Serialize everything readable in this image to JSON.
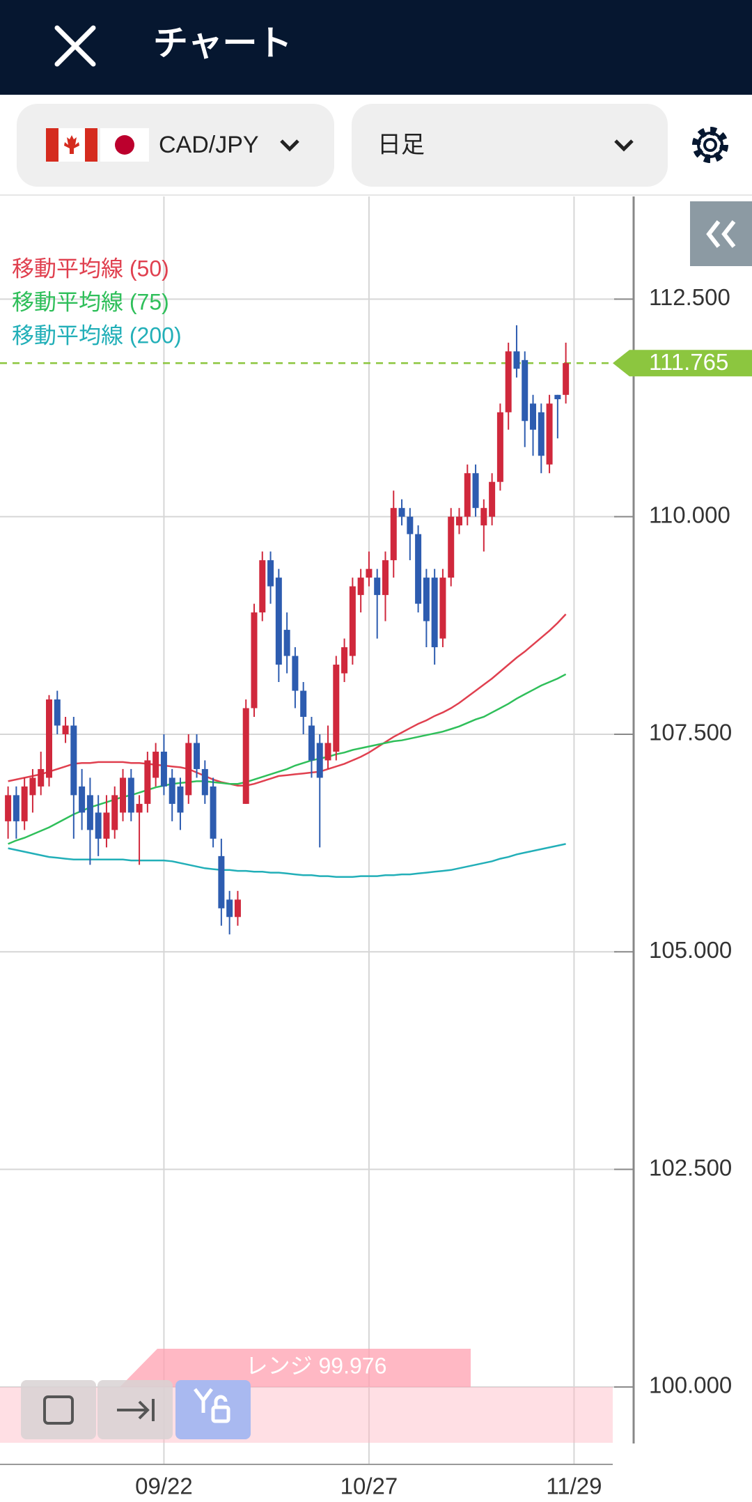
{
  "header": {
    "title": "チャート",
    "pair": "CAD/JPY",
    "timeframe": "日足"
  },
  "chart_data": {
    "type": "candlestick",
    "categories": [
      null,
      null,
      null,
      null,
      null,
      null,
      null,
      null,
      null,
      null,
      null,
      null,
      null,
      null,
      null,
      null,
      null,
      null,
      null,
      "09/22",
      null,
      null,
      null,
      null,
      null,
      null,
      null,
      null,
      null,
      null,
      null,
      null,
      null,
      null,
      null,
      null,
      null,
      null,
      null,
      null,
      null,
      null,
      null,
      null,
      "10/27",
      null,
      null,
      null,
      null,
      null,
      null,
      null,
      null,
      null,
      null,
      null,
      null,
      null,
      null,
      null,
      null,
      null,
      null,
      null,
      null,
      null,
      null,
      null,
      null,
      "11/29"
    ],
    "open": [
      106.5,
      106.8,
      106.5,
      106.8,
      106.9,
      107.0,
      107.9,
      107.5,
      107.6,
      106.9,
      106.8,
      106.6,
      106.3,
      106.4,
      106.6,
      107.0,
      106.6,
      106.7,
      107.0,
      107.3,
      107.0,
      106.9,
      106.8,
      107.4,
      107.1,
      106.9,
      106.1,
      105.6,
      105.4,
      106.7,
      107.8,
      108.9,
      109.5,
      109.3,
      108.7,
      108.4,
      108.0,
      107.6,
      107.4,
      107.2,
      107.3,
      108.2,
      108.4,
      109.1,
      109.3,
      109.3,
      109.1,
      109.5,
      110.1,
      110.0,
      109.8,
      109.3,
      109.3,
      108.6,
      109.3,
      109.9,
      110.0,
      110.5,
      109.9,
      110.0,
      110.4,
      111.2,
      111.9,
      111.8,
      111.3,
      111.2,
      110.6,
      111.4,
      111.4,
      null
    ],
    "high": [
      106.9,
      106.9,
      107.0,
      107.1,
      107.3,
      107.95,
      108.0,
      107.7,
      107.7,
      107.1,
      107.0,
      106.8,
      106.8,
      106.9,
      107.1,
      107.1,
      106.8,
      107.3,
      107.4,
      107.5,
      107.1,
      107.0,
      107.5,
      107.5,
      107.2,
      107.0,
      106.3,
      105.7,
      105.7,
      107.9,
      109.0,
      109.6,
      109.6,
      109.4,
      108.9,
      108.5,
      108.1,
      107.7,
      107.5,
      107.6,
      108.4,
      108.6,
      109.3,
      109.4,
      109.6,
      109.4,
      109.6,
      110.3,
      110.2,
      110.1,
      109.9,
      109.4,
      109.4,
      109.4,
      110.1,
      110.1,
      110.6,
      110.6,
      110.2,
      110.5,
      111.3,
      112.0,
      112.2,
      111.9,
      111.4,
      111.3,
      111.4,
      111.4,
      112.0,
      null
    ],
    "low": [
      106.3,
      106.3,
      106.4,
      106.6,
      106.8,
      106.9,
      107.5,
      107.4,
      106.3,
      106.4,
      106.0,
      106.1,
      106.2,
      106.3,
      106.5,
      106.5,
      106.0,
      106.6,
      106.9,
      106.8,
      106.5,
      106.4,
      106.7,
      107.0,
      106.7,
      106.2,
      105.3,
      105.2,
      105.3,
      106.7,
      107.7,
      108.8,
      109.0,
      108.1,
      108.2,
      107.8,
      107.5,
      107.0,
      106.2,
      107.1,
      107.2,
      108.1,
      108.3,
      108.9,
      109.2,
      108.6,
      108.8,
      109.3,
      109.9,
      109.5,
      108.9,
      108.5,
      108.3,
      108.5,
      109.2,
      109.8,
      109.9,
      110.0,
      109.6,
      109.9,
      110.3,
      111.0,
      111.6,
      110.8,
      110.7,
      110.5,
      110.5,
      110.9,
      111.3,
      null
    ],
    "close": [
      106.8,
      106.5,
      106.9,
      107.0,
      107.1,
      107.9,
      107.6,
      107.6,
      106.8,
      106.6,
      106.4,
      106.3,
      106.6,
      106.8,
      107.0,
      106.6,
      106.7,
      107.2,
      107.3,
      106.9,
      106.7,
      106.6,
      107.4,
      107.1,
      106.8,
      106.3,
      105.5,
      105.4,
      105.6,
      107.8,
      108.9,
      109.5,
      109.2,
      108.3,
      108.4,
      108.0,
      107.7,
      107.2,
      107.0,
      107.4,
      108.3,
      108.5,
      109.2,
      109.3,
      109.4,
      109.1,
      109.5,
      110.1,
      110.0,
      109.8,
      109.0,
      108.8,
      108.5,
      109.3,
      110.0,
      110.0,
      110.5,
      110.1,
      110.1,
      110.4,
      111.2,
      111.9,
      111.7,
      111.1,
      111.0,
      110.7,
      111.3,
      111.35,
      111.765,
      null
    ],
    "up_color": "#d0283c",
    "down_color": "#2d5cb0",
    "series": [
      {
        "name": "移動平均線 (50)",
        "color": "#e0404f",
        "values": [
          106.96,
          106.98,
          107.0,
          107.02,
          107.04,
          107.07,
          107.1,
          107.13,
          107.16,
          107.17,
          107.17,
          107.18,
          107.18,
          107.18,
          107.18,
          107.17,
          107.17,
          107.16,
          107.15,
          107.14,
          107.13,
          107.12,
          107.1,
          107.06,
          107.02,
          106.98,
          106.95,
          106.93,
          106.91,
          106.91,
          106.93,
          106.96,
          106.99,
          107.02,
          107.03,
          107.04,
          107.05,
          107.06,
          107.07,
          107.1,
          107.13,
          107.16,
          107.2,
          107.24,
          107.29,
          107.35,
          107.41,
          107.47,
          107.52,
          107.57,
          107.62,
          107.66,
          107.71,
          107.75,
          107.8,
          107.86,
          107.93,
          108.0,
          108.07,
          108.14,
          108.22,
          108.3,
          108.38,
          108.45,
          108.53,
          108.61,
          108.69,
          108.78,
          108.88,
          null
        ]
      },
      {
        "name": "移動平均線 (75)",
        "color": "#2fbf5a",
        "values": [
          106.24,
          106.28,
          106.31,
          106.35,
          106.39,
          106.43,
          106.48,
          106.53,
          106.58,
          106.62,
          106.66,
          106.69,
          106.72,
          106.75,
          106.78,
          106.8,
          106.83,
          106.86,
          106.89,
          106.91,
          106.93,
          106.94,
          106.95,
          106.96,
          106.96,
          106.95,
          106.94,
          106.93,
          106.93,
          106.95,
          106.98,
          107.01,
          107.04,
          107.07,
          107.1,
          107.14,
          107.17,
          107.2,
          107.22,
          107.24,
          107.27,
          107.29,
          107.32,
          107.34,
          107.36,
          107.38,
          107.4,
          107.42,
          107.43,
          107.45,
          107.47,
          107.49,
          107.51,
          107.53,
          107.56,
          107.59,
          107.63,
          107.67,
          107.7,
          107.75,
          107.8,
          107.85,
          107.91,
          107.96,
          108.01,
          108.06,
          108.1,
          108.14,
          108.19,
          null
        ]
      },
      {
        "name": "移動平均線 (200)",
        "color": "#22afb8",
        "values": [
          106.19,
          106.17,
          106.15,
          106.13,
          106.11,
          106.09,
          106.08,
          106.07,
          106.06,
          106.06,
          106.06,
          106.06,
          106.06,
          106.06,
          106.06,
          106.05,
          106.05,
          106.05,
          106.05,
          106.05,
          106.04,
          106.02,
          106.0,
          105.98,
          105.96,
          105.95,
          105.94,
          105.94,
          105.93,
          105.93,
          105.92,
          105.92,
          105.91,
          105.91,
          105.9,
          105.89,
          105.88,
          105.88,
          105.87,
          105.87,
          105.86,
          105.86,
          105.86,
          105.87,
          105.87,
          105.87,
          105.88,
          105.88,
          105.89,
          105.89,
          105.9,
          105.91,
          105.92,
          105.93,
          105.94,
          105.96,
          105.98,
          106.0,
          106.02,
          106.04,
          106.07,
          106.09,
          106.12,
          106.14,
          106.16,
          106.18,
          106.2,
          106.22,
          106.24,
          null
        ]
      }
    ],
    "ylim": [
      99.11,
      113.68
    ],
    "yticks": [
      {
        "value": 100,
        "label": "100.000"
      },
      {
        "value": 102.5,
        "label": "102.500"
      },
      {
        "value": 105,
        "label": "105.000"
      },
      {
        "value": 107.5,
        "label": "107.500"
      },
      {
        "value": 110,
        "label": "110.000"
      },
      {
        "value": 112.5,
        "label": "112.500"
      }
    ],
    "grid": true,
    "current_price": {
      "value": 111.765,
      "label": "111.765",
      "color": "#8cc63f"
    },
    "range_label": "レンジ 99.976"
  }
}
